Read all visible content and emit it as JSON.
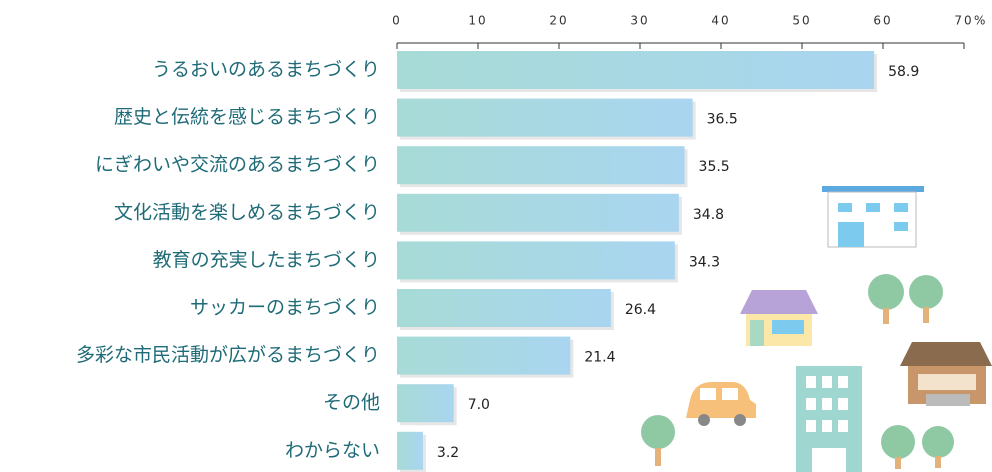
{
  "chart_data": {
    "type": "barh",
    "categories": [
      "うるおいのあるまちづくり",
      "歴史と伝統を感じるまちづくり",
      "にぎわいや交流のあるまちづくり",
      "文化活動を楽しめるまちづくり",
      "教育の充実したまちづくり",
      "サッカーのまちづくり",
      "多彩な市民活動が広がるまちづくり",
      "その他",
      "わからない"
    ],
    "values": [
      58.9,
      36.5,
      35.5,
      34.8,
      34.3,
      26.4,
      21.4,
      7.0,
      3.2
    ],
    "value_labels": [
      "58.9",
      "36.5",
      "35.5",
      "34.8",
      "34.3",
      "26.4",
      "21.4",
      "7.0",
      "3.2"
    ],
    "xlim": [
      0,
      70
    ],
    "xticks": [
      0,
      10,
      20,
      30,
      40,
      50,
      60,
      70
    ],
    "x_unit": "%",
    "colors": [
      "#a7dbd6",
      "#a9d5f0"
    ]
  }
}
